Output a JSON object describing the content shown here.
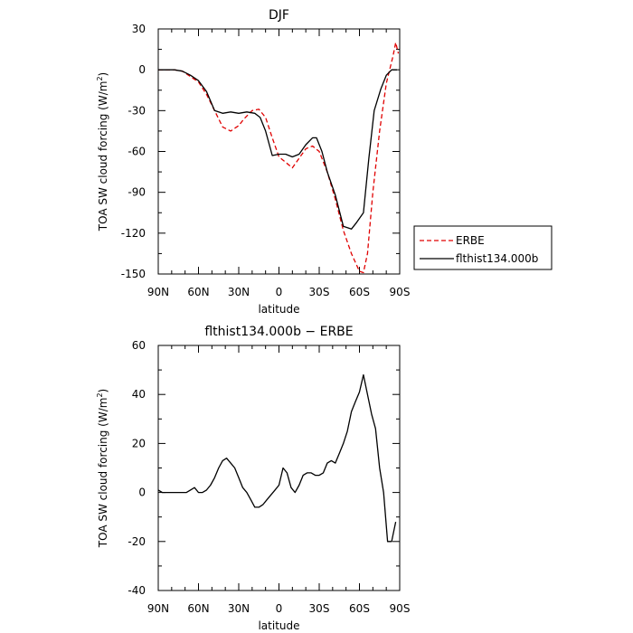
{
  "chart_data": [
    {
      "type": "line",
      "title": "DJF",
      "xlabel": "latitude",
      "ylabel": "TOA SW cloud forcing (W/m",
      "ylabel_sup": "2",
      "ylabel_tail": ")",
      "xlim": [
        90,
        -90
      ],
      "ylim": [
        -150,
        30
      ],
      "yticks": [
        -150,
        -120,
        -90,
        -60,
        -30,
        0,
        30
      ],
      "xticks": [
        90,
        60,
        30,
        0,
        -30,
        -60,
        -90
      ],
      "xtick_labels": [
        "90N",
        "60N",
        "30N",
        "0",
        "30S",
        "60S",
        "90S"
      ],
      "legend_position": "outside-right",
      "series": [
        {
          "name": "ERBE",
          "color": "#e00000",
          "dash": true,
          "x": [
            90,
            84,
            78,
            72,
            66,
            60,
            54,
            48,
            42,
            36,
            30,
            26,
            20,
            15,
            10,
            5,
            0,
            -5,
            -10,
            -15,
            -20,
            -25,
            -30,
            -36,
            -42,
            -48,
            -54,
            -60,
            -63,
            -66,
            -70,
            -75,
            -80,
            -85,
            -87,
            -89
          ],
          "y": [
            0,
            0,
            0,
            -1,
            -5,
            -9,
            -18,
            -30,
            -42,
            -45,
            -41,
            -36,
            -30,
            -29,
            -35,
            -50,
            -64,
            -68,
            -72,
            -65,
            -58,
            -56,
            -60,
            -75,
            -95,
            -118,
            -135,
            -148,
            -149,
            -135,
            -90,
            -45,
            -10,
            10,
            20,
            12
          ]
        },
        {
          "name": "flthist134.000b",
          "color": "#000000",
          "dash": false,
          "x": [
            90,
            84,
            78,
            72,
            66,
            60,
            54,
            48,
            42,
            36,
            30,
            24,
            18,
            14,
            10,
            5,
            0,
            -5,
            -10,
            -15,
            -20,
            -25,
            -28,
            -32,
            -36,
            -42,
            -48,
            -54,
            -58,
            -63,
            -67,
            -71,
            -76,
            -80,
            -84,
            -88
          ],
          "y": [
            0,
            0,
            0,
            -1,
            -4,
            -8,
            -16,
            -30,
            -32,
            -31,
            -32,
            -31,
            -32,
            -35,
            -45,
            -63,
            -62,
            -62,
            -64,
            -62,
            -55,
            -50,
            -50,
            -60,
            -75,
            -92,
            -115,
            -117,
            -112,
            -105,
            -65,
            -30,
            -14,
            -4,
            0,
            0
          ]
        }
      ]
    },
    {
      "type": "line",
      "title": "flthist134.000b − ERBE",
      "xlabel": "latitude",
      "ylabel": "TOA SW cloud forcing (W/m",
      "ylabel_sup": "2",
      "ylabel_tail": ")",
      "xlim": [
        90,
        -90
      ],
      "ylim": [
        -40,
        60
      ],
      "yticks": [
        -40,
        -20,
        0,
        20,
        40,
        60
      ],
      "xticks": [
        90,
        60,
        30,
        0,
        -30,
        -60,
        -90
      ],
      "xtick_labels": [
        "90N",
        "60N",
        "30N",
        "0",
        "30S",
        "60S",
        "90S"
      ],
      "series": [
        {
          "name": "",
          "color": "#000000",
          "dash": false,
          "x": [
            90,
            87,
            84,
            81,
            78,
            75,
            72,
            69,
            66,
            63,
            60,
            57,
            54,
            51,
            48,
            45,
            42,
            39,
            36,
            33,
            30,
            27,
            24,
            21,
            18,
            15,
            12,
            9,
            6,
            3,
            0,
            -3,
            -6,
            -9,
            -12,
            -15,
            -18,
            -21,
            -24,
            -27,
            -30,
            -33,
            -36,
            -39,
            -42,
            -45,
            -48,
            -51,
            -54,
            -57,
            -60,
            -63,
            -66,
            -69,
            -72,
            -75,
            -78,
            -81,
            -84,
            -87
          ],
          "y": [
            1,
            0,
            0,
            0,
            0,
            0,
            0,
            0,
            1,
            2,
            0,
            0,
            1,
            3,
            6,
            10,
            13,
            14,
            12,
            10,
            6,
            2,
            0,
            -3,
            -6,
            -6,
            -5,
            -3,
            -1,
            1,
            3,
            10,
            8,
            2,
            0,
            3,
            7,
            8,
            8,
            7,
            7,
            8,
            12,
            13,
            12,
            16,
            20,
            25,
            33,
            37,
            41,
            48,
            40,
            32,
            26,
            10,
            0,
            -20,
            -20,
            -12
          ]
        }
      ]
    }
  ],
  "legend": {
    "entries": [
      {
        "label": "ERBE",
        "color": "#e00000",
        "dash": true
      },
      {
        "label": "flthist134.000b",
        "color": "#000000",
        "dash": false
      }
    ]
  }
}
